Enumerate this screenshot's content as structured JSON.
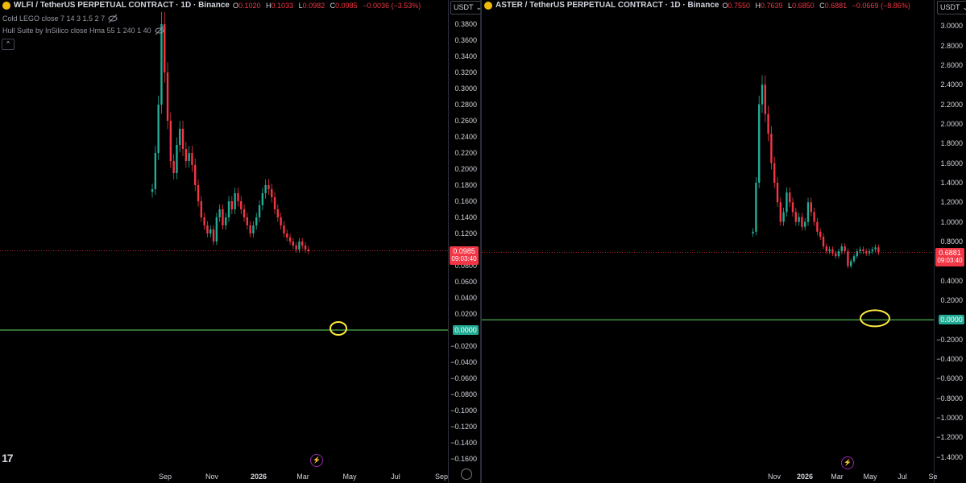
{
  "left_chart": {
    "symbol": "WLFI / TetherUS PERPETUAL CONTRACT · 1D · Binance",
    "ohlc": {
      "o_label": "O",
      "o": "0.1020",
      "h_label": "H",
      "h": "0.1033",
      "l_label": "L",
      "l": "0.0982",
      "c_label": "C",
      "c": "0.0985",
      "change": "−0.0036 (−3.53%)"
    },
    "indicator1": "Cold LEGO close 7 14 3 1.5 2 7",
    "indicator2": "Hull Suite by InSilico close Hma 55 1 240 1 40",
    "currency": "USDT",
    "current_price": "0.0985",
    "countdown": "09:03:40",
    "zero_label": "0.0000",
    "y_ticks": [
      "0.3800",
      "0.3600",
      "0.3400",
      "0.3200",
      "0.3000",
      "0.2800",
      "0.2600",
      "0.2400",
      "0.2200",
      "0.2000",
      "0.1800",
      "0.1600",
      "0.1400",
      "0.1200",
      "0.0800",
      "0.0600",
      "0.0400",
      "0.0200",
      "−0.0200",
      "−0.0400",
      "−0.0600",
      "−0.0800",
      "−0.1000",
      "−0.1200",
      "−0.1400",
      "−0.1600"
    ],
    "x_ticks": [
      "Sep",
      "Nov",
      "2026",
      "Mar",
      "May",
      "Jul",
      "Sep"
    ],
    "y_range": [
      -0.17,
      0.39
    ],
    "series": {
      "start_x_ratio": 0.34,
      "closes": [
        0.175,
        0.22,
        0.28,
        0.38,
        0.32,
        0.26,
        0.21,
        0.195,
        0.23,
        0.25,
        0.225,
        0.21,
        0.22,
        0.205,
        0.18,
        0.16,
        0.14,
        0.13,
        0.12,
        0.125,
        0.11,
        0.14,
        0.15,
        0.13,
        0.14,
        0.16,
        0.15,
        0.17,
        0.16,
        0.15,
        0.14,
        0.13,
        0.12,
        0.13,
        0.14,
        0.155,
        0.17,
        0.18,
        0.175,
        0.165,
        0.15,
        0.14,
        0.13,
        0.12,
        0.115,
        0.11,
        0.105,
        0.1,
        0.11,
        0.105,
        0.1,
        0.098
      ]
    },
    "colors": {
      "up": "#22ab94",
      "down": "#f23645",
      "zero_line": "#4caf50",
      "annotation": "#ffeb3b"
    }
  },
  "right_chart": {
    "symbol": "ASTER / TetherUS PERPETUAL CONTRACT · 1D · Binance",
    "ohlc": {
      "o_label": "O",
      "o": "0.7550",
      "h_label": "H",
      "h": "0.7639",
      "l_label": "L",
      "l": "0.6850",
      "c_label": "C",
      "c": "0.6881",
      "change": "−0.0669 (−8.86%)"
    },
    "currency": "USDT",
    "current_price": "0.6881",
    "countdown": "09:03:40",
    "zero_label": "0.0000",
    "y_ticks": [
      "3.0000",
      "2.8000",
      "2.6000",
      "2.4000",
      "2.2000",
      "2.0000",
      "1.8000",
      "1.6000",
      "1.4000",
      "1.2000",
      "1.0000",
      "0.8000",
      "0.4000",
      "0.2000",
      "−0.2000",
      "−0.4000",
      "−0.6000",
      "−0.8000",
      "−1.0000",
      "−1.2000",
      "−1.4000"
    ],
    "x_ticks": [
      "Nov",
      "2026",
      "Mar",
      "May",
      "Jul",
      "Se"
    ],
    "y_range": [
      -1.5,
      3.1
    ],
    "series": {
      "start_x_ratio": 0.6,
      "closes": [
        0.9,
        1.4,
        2.2,
        2.4,
        2.1,
        1.9,
        1.6,
        1.4,
        1.2,
        1.0,
        1.1,
        1.3,
        1.2,
        1.1,
        1.0,
        1.05,
        0.95,
        1.0,
        1.2,
        1.1,
        1.0,
        0.9,
        0.85,
        0.75,
        0.7,
        0.72,
        0.68,
        0.65,
        0.7,
        0.75,
        0.7,
        0.55,
        0.6,
        0.65,
        0.7,
        0.72,
        0.7,
        0.68,
        0.7,
        0.72,
        0.74,
        0.69
      ]
    },
    "colors": {
      "up": "#22ab94",
      "down": "#f23645",
      "zero_line": "#4caf50",
      "annotation": "#ffeb3b"
    }
  }
}
